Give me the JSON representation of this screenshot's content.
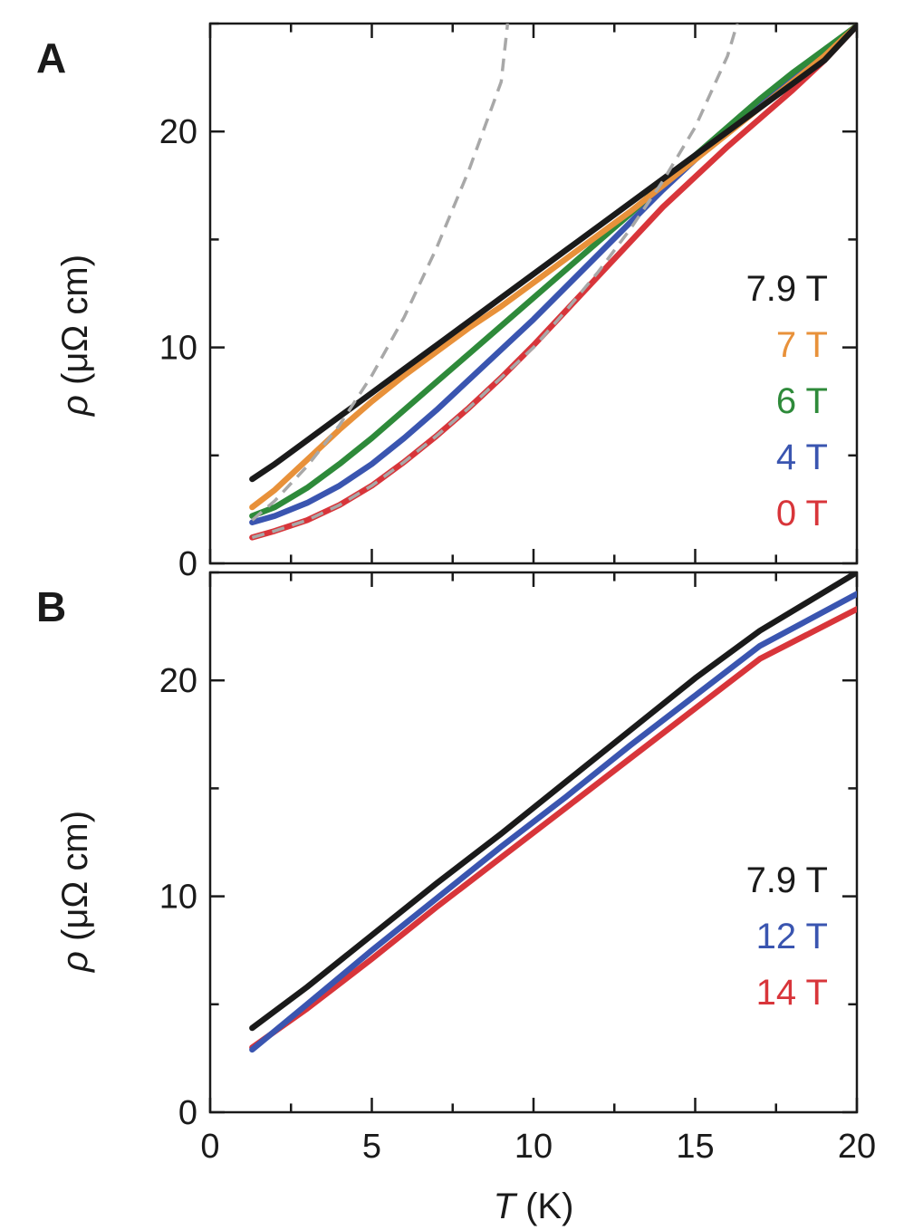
{
  "chart_data": [
    {
      "type": "line",
      "panel_label": "A",
      "xlabel": "T (K)",
      "xlabel_italic": "T",
      "xlabel_rest": " (K)",
      "ylabel_italic": "ρ",
      "ylabel_rest": " (μΩ cm)",
      "xlim": [
        0,
        20
      ],
      "ylim": [
        0,
        25
      ],
      "xticks": [
        0,
        5,
        10,
        15,
        20
      ],
      "yticks": [
        0,
        10,
        20
      ],
      "xtick_labels": [
        "0",
        "5",
        "10",
        "15",
        "20"
      ],
      "ytick_labels": [
        "0",
        "10",
        "20"
      ],
      "legend_position": "right",
      "series": [
        {
          "name": "7.9 T",
          "color": "#1a1a1a",
          "x": [
            1.3,
            2,
            3,
            4,
            5,
            6,
            7,
            8,
            9,
            10,
            11,
            12,
            13,
            14,
            15,
            16,
            17,
            18,
            19,
            20
          ],
          "y": [
            3.9,
            4.6,
            5.7,
            6.8,
            7.9,
            9.0,
            10.1,
            11.2,
            12.3,
            13.4,
            14.5,
            15.6,
            16.7,
            17.8,
            18.9,
            20.0,
            21.1,
            22.2,
            23.3,
            24.9
          ]
        },
        {
          "name": "7 T",
          "color": "#e8913a",
          "x": [
            1.3,
            2,
            3,
            4,
            5,
            6,
            7,
            8,
            9,
            10,
            11,
            12,
            13,
            14,
            15,
            16,
            17,
            18,
            19,
            20
          ],
          "y": [
            2.6,
            3.4,
            4.8,
            6.2,
            7.5,
            8.7,
            9.8,
            10.9,
            11.9,
            13.0,
            14.1,
            15.2,
            16.3,
            17.5,
            18.7,
            19.9,
            21.1,
            22.3,
            23.5,
            24.9
          ]
        },
        {
          "name": "6 T",
          "color": "#2e8a3a",
          "x": [
            1.3,
            2,
            3,
            4,
            5,
            6,
            7,
            8,
            9,
            10,
            11,
            12,
            13,
            14,
            15,
            16,
            17,
            18,
            19,
            20
          ],
          "y": [
            2.2,
            2.6,
            3.5,
            4.6,
            5.8,
            7.1,
            8.4,
            9.7,
            11.0,
            12.3,
            13.6,
            14.9,
            16.2,
            17.6,
            18.9,
            20.2,
            21.5,
            22.7,
            23.8,
            24.9
          ]
        },
        {
          "name": "4 T",
          "color": "#3a55b0",
          "x": [
            1.3,
            2,
            3,
            4,
            5,
            6,
            7,
            8,
            9,
            10,
            11,
            12,
            13,
            14,
            15,
            16,
            17,
            18,
            19,
            20
          ],
          "y": [
            1.9,
            2.2,
            2.8,
            3.6,
            4.6,
            5.8,
            7.1,
            8.5,
            9.9,
            11.3,
            12.8,
            14.3,
            15.8,
            17.3,
            18.7,
            20.0,
            21.3,
            22.5,
            23.7,
            24.9
          ]
        },
        {
          "name": "0 T",
          "color": "#d8353a",
          "x": [
            1.3,
            2,
            3,
            4,
            5,
            6,
            7,
            8,
            9,
            10,
            11,
            12,
            13,
            14,
            15,
            16,
            17,
            18,
            19,
            20
          ],
          "y": [
            1.2,
            1.5,
            2.0,
            2.7,
            3.6,
            4.7,
            5.9,
            7.2,
            8.6,
            10.1,
            11.7,
            13.3,
            14.9,
            16.5,
            17.9,
            19.3,
            20.6,
            21.9,
            23.3,
            24.9
          ]
        }
      ],
      "fits": [
        {
          "color": "#a8a8a8",
          "x": [
            1.3,
            2,
            3,
            4,
            5,
            6,
            7,
            8,
            9,
            9.2
          ],
          "y": [
            2.0,
            2.9,
            4.5,
            6.4,
            8.7,
            11.4,
            14.6,
            18.2,
            22.3,
            25.0
          ]
        },
        {
          "color": "#a8a8a8",
          "x": [
            1.3,
            2,
            3,
            4,
            5,
            6,
            7,
            8,
            9,
            10,
            11,
            12,
            13,
            14,
            15,
            16,
            16.3
          ],
          "y": [
            1.2,
            1.5,
            2.0,
            2.7,
            3.6,
            4.7,
            5.9,
            7.2,
            8.6,
            10.0,
            11.7,
            13.5,
            15.5,
            17.7,
            20.2,
            23.5,
            25.0
          ]
        }
      ]
    },
    {
      "type": "line",
      "panel_label": "B",
      "xlabel": "T (K)",
      "xlabel_italic": "T",
      "xlabel_rest": " (K)",
      "ylabel_italic": "ρ",
      "ylabel_rest": " (μΩ cm)",
      "xlim": [
        0,
        20
      ],
      "ylim": [
        0,
        25
      ],
      "xticks": [
        0,
        5,
        10,
        15,
        20
      ],
      "yticks": [
        0,
        10,
        20
      ],
      "xtick_labels": [
        "0",
        "5",
        "10",
        "15",
        "20"
      ],
      "ytick_labels": [
        "0",
        "10",
        "20"
      ],
      "legend_position": "right",
      "series": [
        {
          "name": "7.9 T",
          "color": "#1a1a1a",
          "x": [
            1.3,
            3,
            5,
            7,
            9,
            11,
            13,
            15,
            17,
            20
          ],
          "y": [
            3.9,
            5.8,
            8.2,
            10.6,
            12.9,
            15.3,
            17.7,
            20.1,
            22.3,
            25.0
          ]
        },
        {
          "name": "12 T",
          "color": "#3a55b0",
          "x": [
            1.3,
            3,
            5,
            7,
            9,
            11,
            13,
            15,
            17,
            20
          ],
          "y": [
            2.9,
            5.0,
            7.5,
            9.9,
            12.3,
            14.6,
            17.0,
            19.3,
            21.6,
            24.0
          ]
        },
        {
          "name": "14 T",
          "color": "#d8353a",
          "x": [
            1.3,
            3,
            5,
            7,
            9,
            11,
            13,
            15,
            17,
            20
          ],
          "y": [
            3.0,
            4.8,
            7.1,
            9.5,
            11.8,
            14.1,
            16.4,
            18.7,
            21.0,
            23.3
          ]
        }
      ]
    }
  ]
}
